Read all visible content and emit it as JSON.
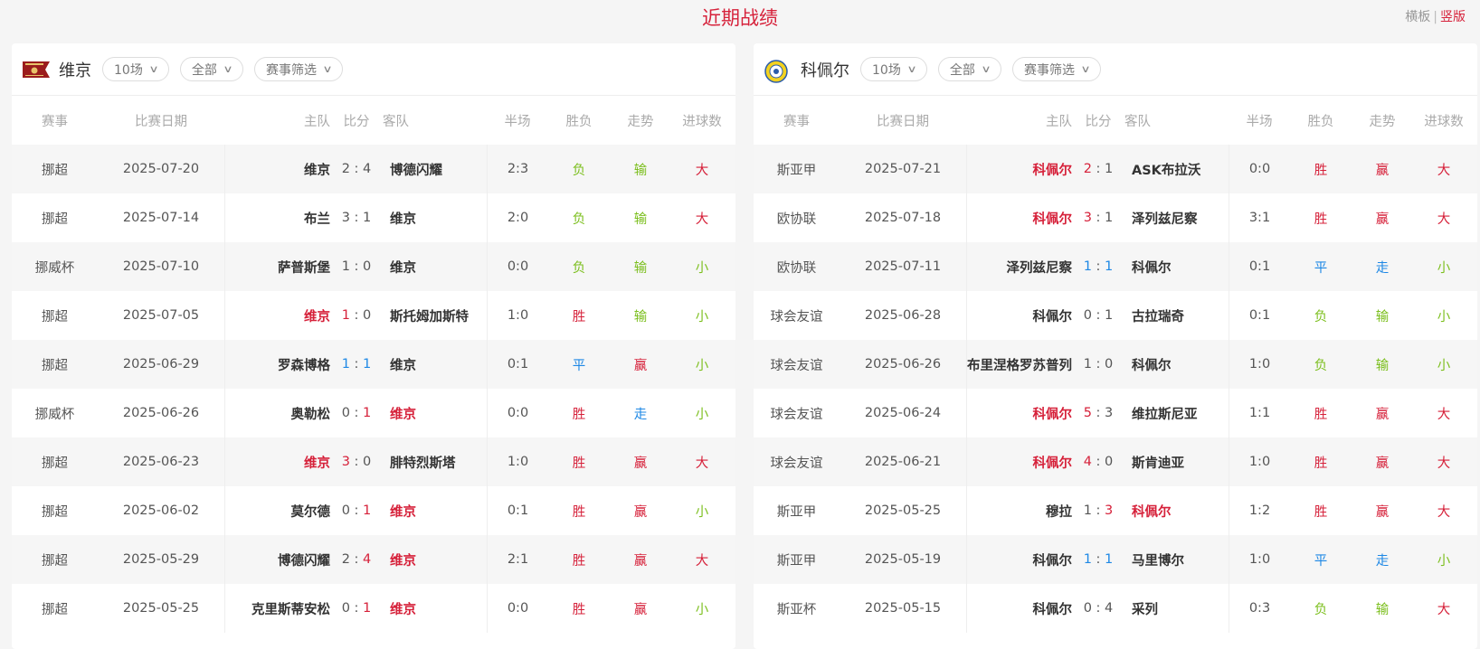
{
  "page_title": "近期战绩",
  "layout_switch": {
    "horizontal": "横板",
    "vertical": "竖版",
    "active": "竖版"
  },
  "colors": {
    "accent": "#d6213a",
    "win": "#d6213a",
    "loss": "#7cbf1e",
    "draw": "#1e88e5"
  },
  "headers": [
    "赛事",
    "比赛日期",
    "主队",
    "比分",
    "客队",
    "半场",
    "胜负",
    "走势",
    "进球数"
  ],
  "panels": [
    {
      "team": "维京",
      "logo": "viking-fk-crest",
      "filters": [
        "10场",
        "全部",
        "赛事筛选"
      ],
      "rows": [
        {
          "comp": "挪超",
          "date": "2025-07-20",
          "home": "维京",
          "hs": "2",
          "as": "4",
          "away": "博德闪耀",
          "ht": "2:3",
          "res": "负",
          "trend": "输",
          "goals": "大"
        },
        {
          "comp": "挪超",
          "date": "2025-07-14",
          "home": "布兰",
          "hs": "3",
          "as": "1",
          "away": "维京",
          "ht": "2:0",
          "res": "负",
          "trend": "输",
          "goals": "大"
        },
        {
          "comp": "挪威杯",
          "date": "2025-07-10",
          "home": "萨普斯堡",
          "hs": "1",
          "as": "0",
          "away": "维京",
          "ht": "0:0",
          "res": "负",
          "trend": "输",
          "goals": "小"
        },
        {
          "comp": "挪超",
          "date": "2025-07-05",
          "home": "维京",
          "hs": "1",
          "as": "0",
          "away": "斯托姆加斯特",
          "ht": "1:0",
          "res": "胜",
          "trend": "输",
          "goals": "小"
        },
        {
          "comp": "挪超",
          "date": "2025-06-29",
          "home": "罗森博格",
          "hs": "1",
          "as": "1",
          "away": "维京",
          "ht": "0:1",
          "res": "平",
          "trend": "赢",
          "goals": "小"
        },
        {
          "comp": "挪威杯",
          "date": "2025-06-26",
          "home": "奥勒松",
          "hs": "0",
          "as": "1",
          "away": "维京",
          "ht": "0:0",
          "res": "胜",
          "trend": "走",
          "goals": "小"
        },
        {
          "comp": "挪超",
          "date": "2025-06-23",
          "home": "维京",
          "hs": "3",
          "as": "0",
          "away": "腓特烈斯塔",
          "ht": "1:0",
          "res": "胜",
          "trend": "赢",
          "goals": "大"
        },
        {
          "comp": "挪超",
          "date": "2025-06-02",
          "home": "莫尔德",
          "hs": "0",
          "as": "1",
          "away": "维京",
          "ht": "0:1",
          "res": "胜",
          "trend": "赢",
          "goals": "小"
        },
        {
          "comp": "挪超",
          "date": "2025-05-29",
          "home": "博德闪耀",
          "hs": "2",
          "as": "4",
          "away": "维京",
          "ht": "2:1",
          "res": "胜",
          "trend": "赢",
          "goals": "大"
        },
        {
          "comp": "挪超",
          "date": "2025-05-25",
          "home": "克里斯蒂安松",
          "hs": "0",
          "as": "1",
          "away": "维京",
          "ht": "0:0",
          "res": "胜",
          "trend": "赢",
          "goals": "小"
        }
      ]
    },
    {
      "team": "科佩尔",
      "logo": "koper-crest",
      "filters": [
        "10场",
        "全部",
        "赛事筛选"
      ],
      "rows": [
        {
          "comp": "斯亚甲",
          "date": "2025-07-21",
          "home": "科佩尔",
          "hs": "2",
          "as": "1",
          "away": "ASK布拉沃",
          "ht": "0:0",
          "res": "胜",
          "trend": "赢",
          "goals": "大"
        },
        {
          "comp": "欧协联",
          "date": "2025-07-18",
          "home": "科佩尔",
          "hs": "3",
          "as": "1",
          "away": "泽列兹尼察",
          "ht": "3:1",
          "res": "胜",
          "trend": "赢",
          "goals": "大"
        },
        {
          "comp": "欧协联",
          "date": "2025-07-11",
          "home": "泽列兹尼察",
          "hs": "1",
          "as": "1",
          "away": "科佩尔",
          "ht": "0:1",
          "res": "平",
          "trend": "走",
          "goals": "小"
        },
        {
          "comp": "球会友谊",
          "date": "2025-06-28",
          "home": "科佩尔",
          "hs": "0",
          "as": "1",
          "away": "古拉瑞奇",
          "ht": "0:1",
          "res": "负",
          "trend": "输",
          "goals": "小"
        },
        {
          "comp": "球会友谊",
          "date": "2025-06-26",
          "home": "布里涅格罗苏普列",
          "hs": "1",
          "as": "0",
          "away": "科佩尔",
          "ht": "1:0",
          "res": "负",
          "trend": "输",
          "goals": "小"
        },
        {
          "comp": "球会友谊",
          "date": "2025-06-24",
          "home": "科佩尔",
          "hs": "5",
          "as": "3",
          "away": "维拉斯尼亚",
          "ht": "1:1",
          "res": "胜",
          "trend": "赢",
          "goals": "大"
        },
        {
          "comp": "球会友谊",
          "date": "2025-06-21",
          "home": "科佩尔",
          "hs": "4",
          "as": "0",
          "away": "斯肯迪亚",
          "ht": "1:0",
          "res": "胜",
          "trend": "赢",
          "goals": "大"
        },
        {
          "comp": "斯亚甲",
          "date": "2025-05-25",
          "home": "穆拉",
          "hs": "1",
          "as": "3",
          "away": "科佩尔",
          "ht": "1:2",
          "res": "胜",
          "trend": "赢",
          "goals": "大"
        },
        {
          "comp": "斯亚甲",
          "date": "2025-05-19",
          "home": "科佩尔",
          "hs": "1",
          "as": "1",
          "away": "马里博尔",
          "ht": "1:0",
          "res": "平",
          "trend": "走",
          "goals": "小"
        },
        {
          "comp": "斯亚杯",
          "date": "2025-05-15",
          "home": "科佩尔",
          "hs": "0",
          "as": "4",
          "away": "采列",
          "ht": "0:3",
          "res": "负",
          "trend": "输",
          "goals": "大"
        }
      ]
    }
  ]
}
